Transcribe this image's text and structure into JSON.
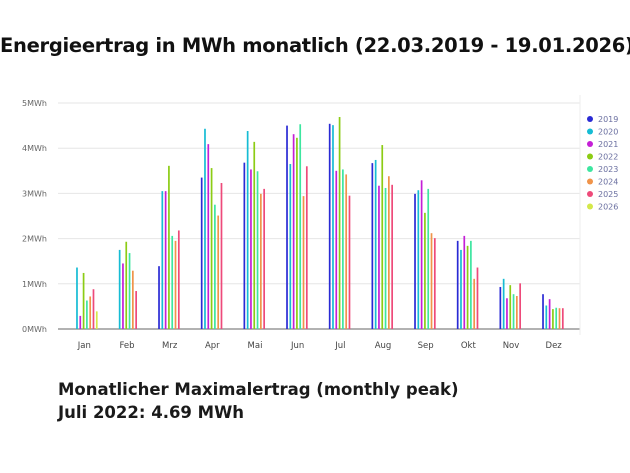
{
  "title": "Energieertrag in MWh monatlich (22.03.2019 - 19.01.2026)",
  "footer": {
    "line1": "Monatlicher Maximalertrag (monthly peak)",
    "line2": "Juli 2022: 4.69 MWh"
  },
  "chart_data": {
    "type": "bar",
    "title": "",
    "xlabel": "",
    "ylabel": "",
    "ylim": [
      0,
      5
    ],
    "yticks": [
      "0MWh",
      "1MWh",
      "2MWh",
      "3MWh",
      "4MWh",
      "5MWh"
    ],
    "grid": true,
    "legend_position": "right",
    "categories": [
      "Jan",
      "Feb",
      "Mrz",
      "Apr",
      "Mai",
      "Jun",
      "Jul",
      "Aug",
      "Sep",
      "Okt",
      "Nov",
      "Dez"
    ],
    "series": [
      {
        "name": "2019",
        "color": "#2a2ad4",
        "values": [
          null,
          null,
          1.39,
          3.35,
          3.68,
          4.5,
          4.54,
          3.67,
          2.99,
          1.95,
          0.93,
          0.77
        ]
      },
      {
        "name": "2020",
        "color": "#16bcd4",
        "values": [
          1.36,
          1.75,
          3.05,
          4.43,
          4.38,
          3.65,
          4.51,
          3.74,
          3.07,
          1.75,
          1.11,
          0.52
        ]
      },
      {
        "name": "2021",
        "color": "#c41fd6",
        "values": [
          0.29,
          1.45,
          3.05,
          4.09,
          3.53,
          4.31,
          3.5,
          3.17,
          3.29,
          2.06,
          0.68,
          0.66
        ]
      },
      {
        "name": "2022",
        "color": "#8ccc14",
        "values": [
          1.24,
          1.93,
          3.61,
          3.56,
          4.14,
          4.23,
          4.69,
          4.07,
          2.57,
          1.84,
          0.97,
          0.44
        ]
      },
      {
        "name": "2023",
        "color": "#3de6a0",
        "values": [
          0.63,
          1.68,
          2.06,
          2.75,
          3.49,
          4.53,
          3.53,
          3.12,
          3.1,
          1.95,
          0.77,
          0.47
        ]
      },
      {
        "name": "2024",
        "color": "#f0944a",
        "values": [
          0.72,
          1.29,
          1.95,
          2.51,
          2.99,
          2.94,
          3.42,
          3.38,
          2.12,
          1.11,
          0.73,
          0.46
        ]
      },
      {
        "name": "2025",
        "color": "#ee4a7a",
        "values": [
          0.88,
          0.84,
          2.18,
          3.23,
          3.1,
          3.6,
          2.95,
          3.19,
          2.01,
          1.36,
          1.01,
          0.46
        ]
      },
      {
        "name": "2026",
        "color": "#d4e84a",
        "values": [
          0.39,
          null,
          null,
          null,
          null,
          null,
          null,
          null,
          null,
          null,
          null,
          null
        ]
      }
    ]
  }
}
